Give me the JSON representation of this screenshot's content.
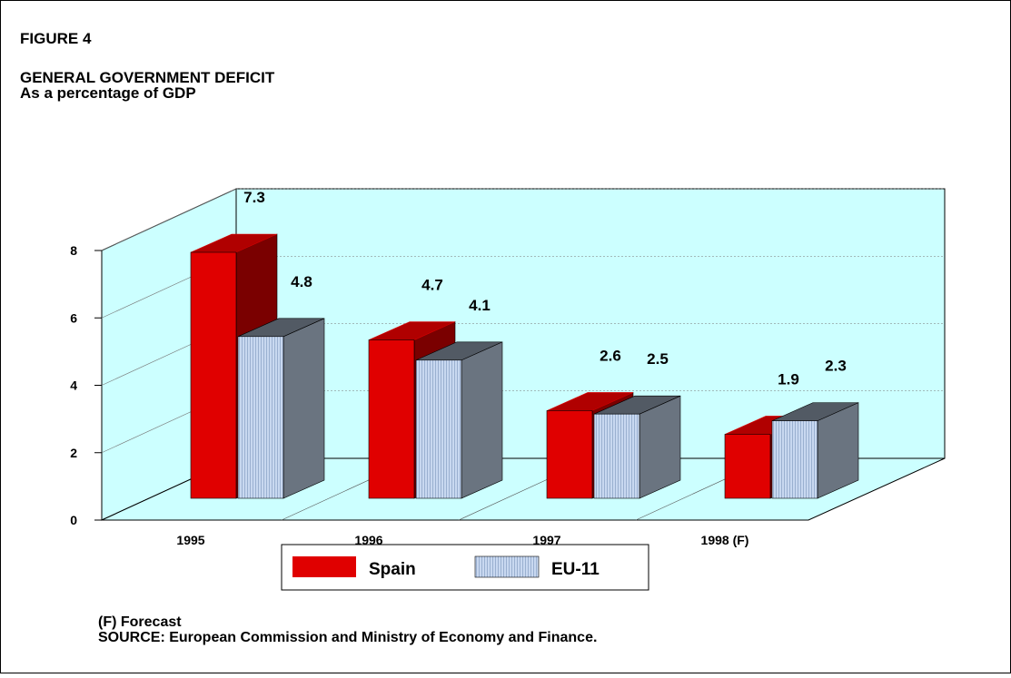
{
  "chart_data": {
    "type": "bar3d",
    "label": "FIGURE 4",
    "title": "GENERAL GOVERNMENT DEFICIT",
    "subtitle": "As a percentage of GDP",
    "categories": [
      "1995",
      "1996",
      "1997",
      "1998 (F)"
    ],
    "series": [
      {
        "name": "Spain",
        "color": "#e00000",
        "values": [
          7.3,
          4.7,
          2.6,
          1.9
        ]
      },
      {
        "name": "EU-11",
        "color": "#c8d8f0",
        "values": [
          4.8,
          4.1,
          2.5,
          2.3
        ]
      }
    ],
    "ylim": [
      0,
      8
    ],
    "yticks": [
      0,
      2,
      4,
      6,
      8
    ],
    "grid": true,
    "footnote": "(F) Forecast",
    "source": "SOURCE: European Commission and Ministry of Economy and Finance."
  }
}
